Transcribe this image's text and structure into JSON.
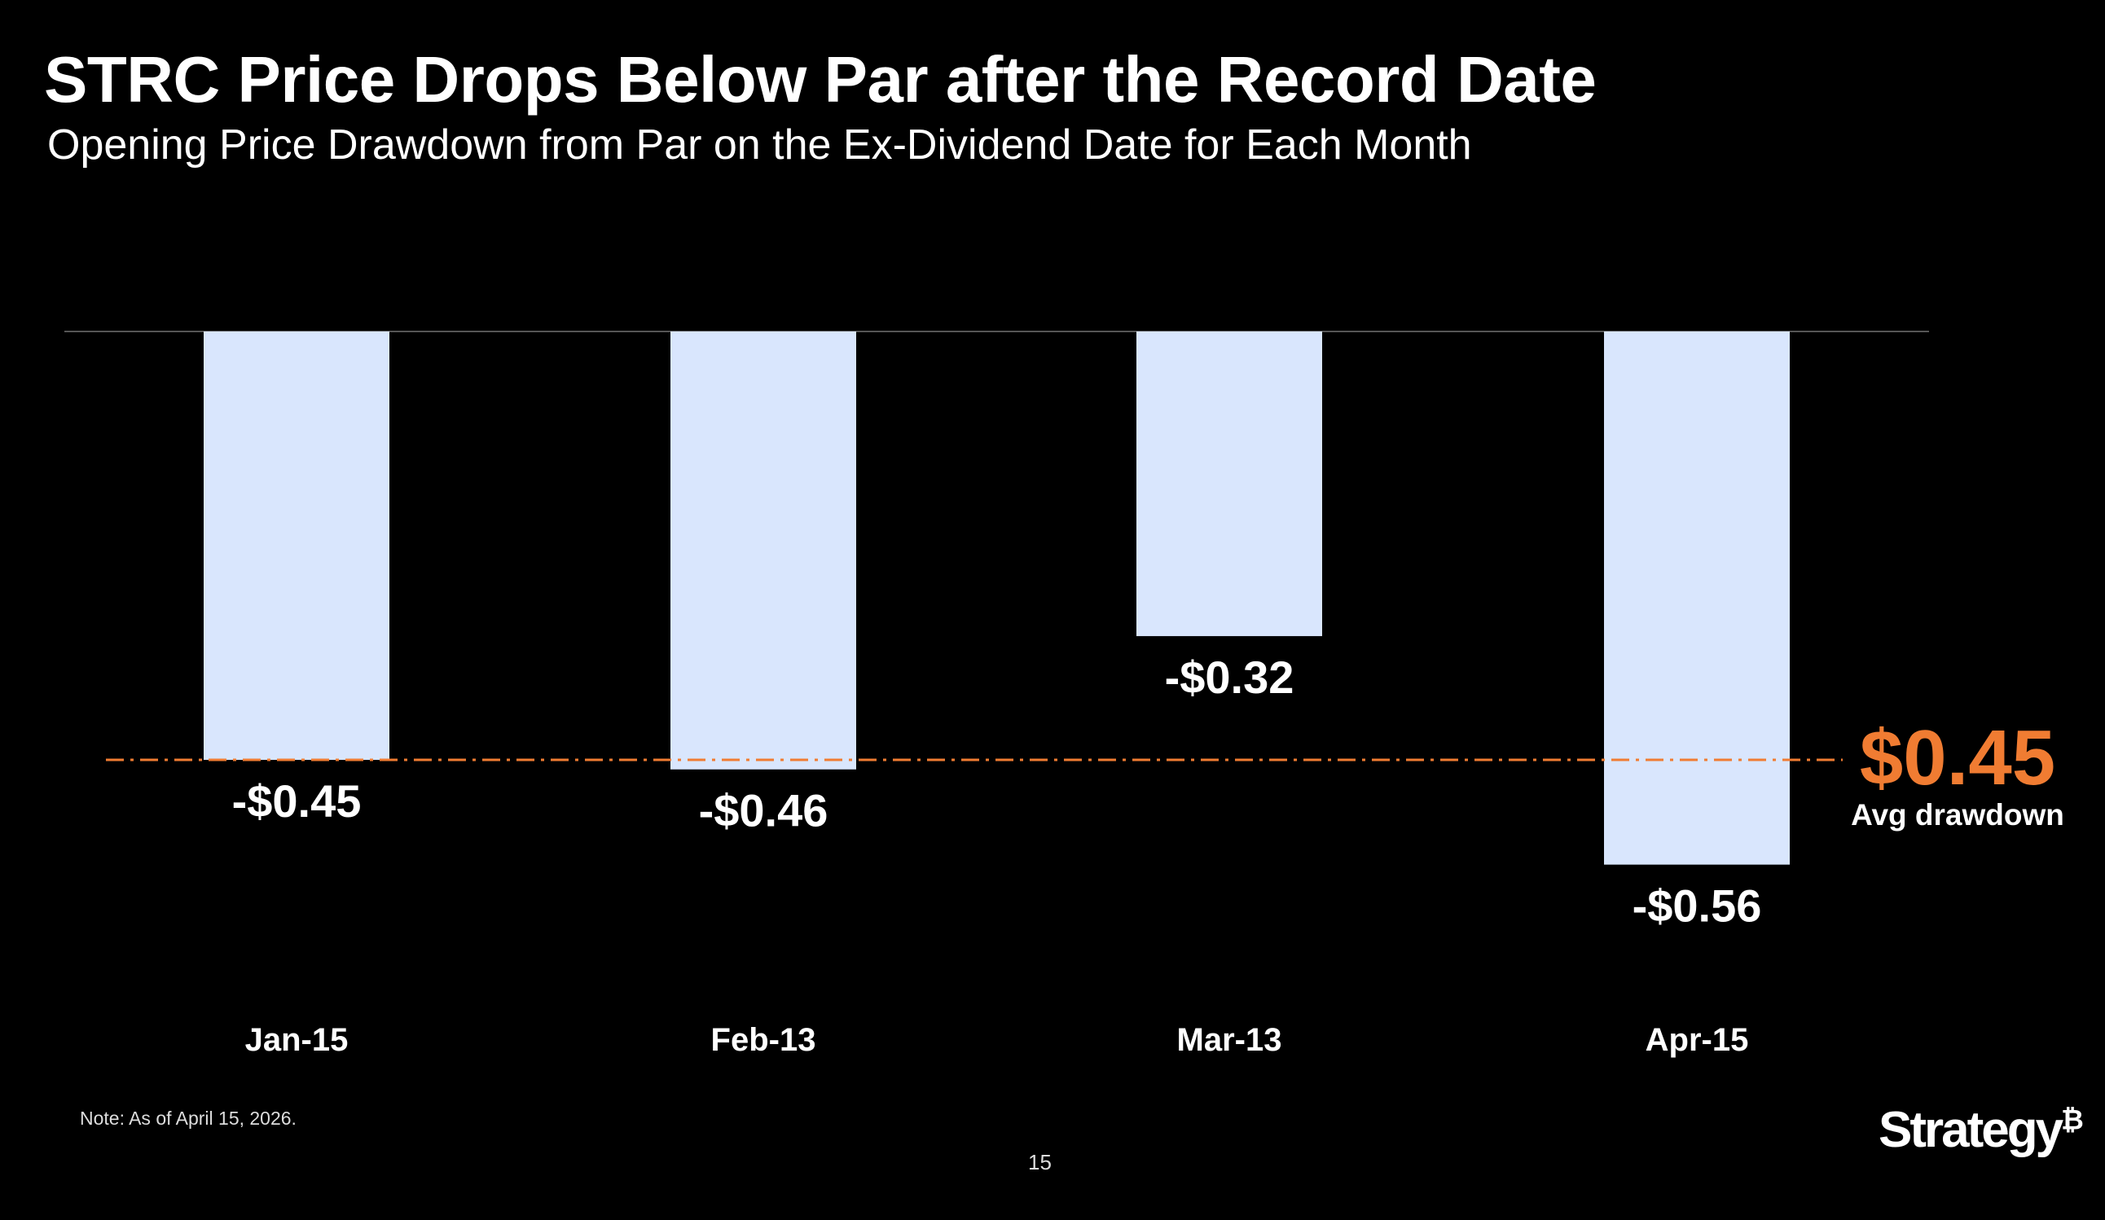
{
  "title": "STRC Price Drops Below Par after the Record Date",
  "subtitle": "Opening Price Drawdown from Par on the Ex-Dividend Date for Each Month",
  "note": "Note: As of April 15, 2026.",
  "page_number": "15",
  "logo": "Strategy₿",
  "chart_data": {
    "type": "bar",
    "title": "STRC Price Drops Below Par after the Record Date",
    "subtitle": "Opening Price Drawdown from Par on the Ex-Dividend Date for Each Month",
    "categories": [
      "Jan-15",
      "Feb-13",
      "Mar-13",
      "Apr-15"
    ],
    "values": [
      -0.45,
      -0.46,
      -0.32,
      -0.56
    ],
    "data_labels": [
      "-$0.45",
      "-$0.46",
      "-$0.32",
      "-$0.56"
    ],
    "average": {
      "value": -0.45,
      "label": "$0.45",
      "caption": "Avg drawdown",
      "line_style": "dash-dot"
    },
    "xlabel": "",
    "ylabel": "",
    "ylim": [
      -0.6,
      0
    ],
    "grid": false,
    "colors": {
      "bar": "#d9e6fd",
      "average": "#f07c32",
      "axis": "#555555"
    }
  }
}
